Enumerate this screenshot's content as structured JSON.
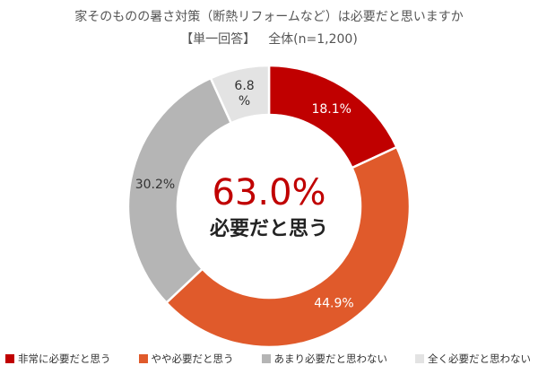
{
  "header": {
    "title": "家そのものの暑さ対策（断熱リフォームなど）は必要だと思いますか",
    "subtitle_label": "【単一回答】",
    "subtitle_total": "全体(n=1,200)"
  },
  "center_label": {
    "value": "63.0%",
    "caption": "必要だと思う"
  },
  "chart_data": {
    "type": "pie",
    "title": "家そのものの暑さ対策（断熱リフォームなど）は必要だと思いますか",
    "subtitle": "【単一回答】 全体(n=1,200)",
    "donut": true,
    "categories": [
      "非常に必要だと思う",
      "やや必要だと思う",
      "あまり必要だと思わない",
      "全く必要だと思わない"
    ],
    "values": [
      18.1,
      44.9,
      30.2,
      6.8
    ],
    "labels": [
      "18.1%",
      "44.9%",
      "30.2%",
      "6.8\n%"
    ],
    "colors": [
      "#c00000",
      "#e05a2b",
      "#b5b5b5",
      "#e3e3e3"
    ],
    "label_colors": [
      "#ffffff",
      "#ffffff",
      "#333333",
      "#333333"
    ],
    "legend_position": "bottom"
  }
}
